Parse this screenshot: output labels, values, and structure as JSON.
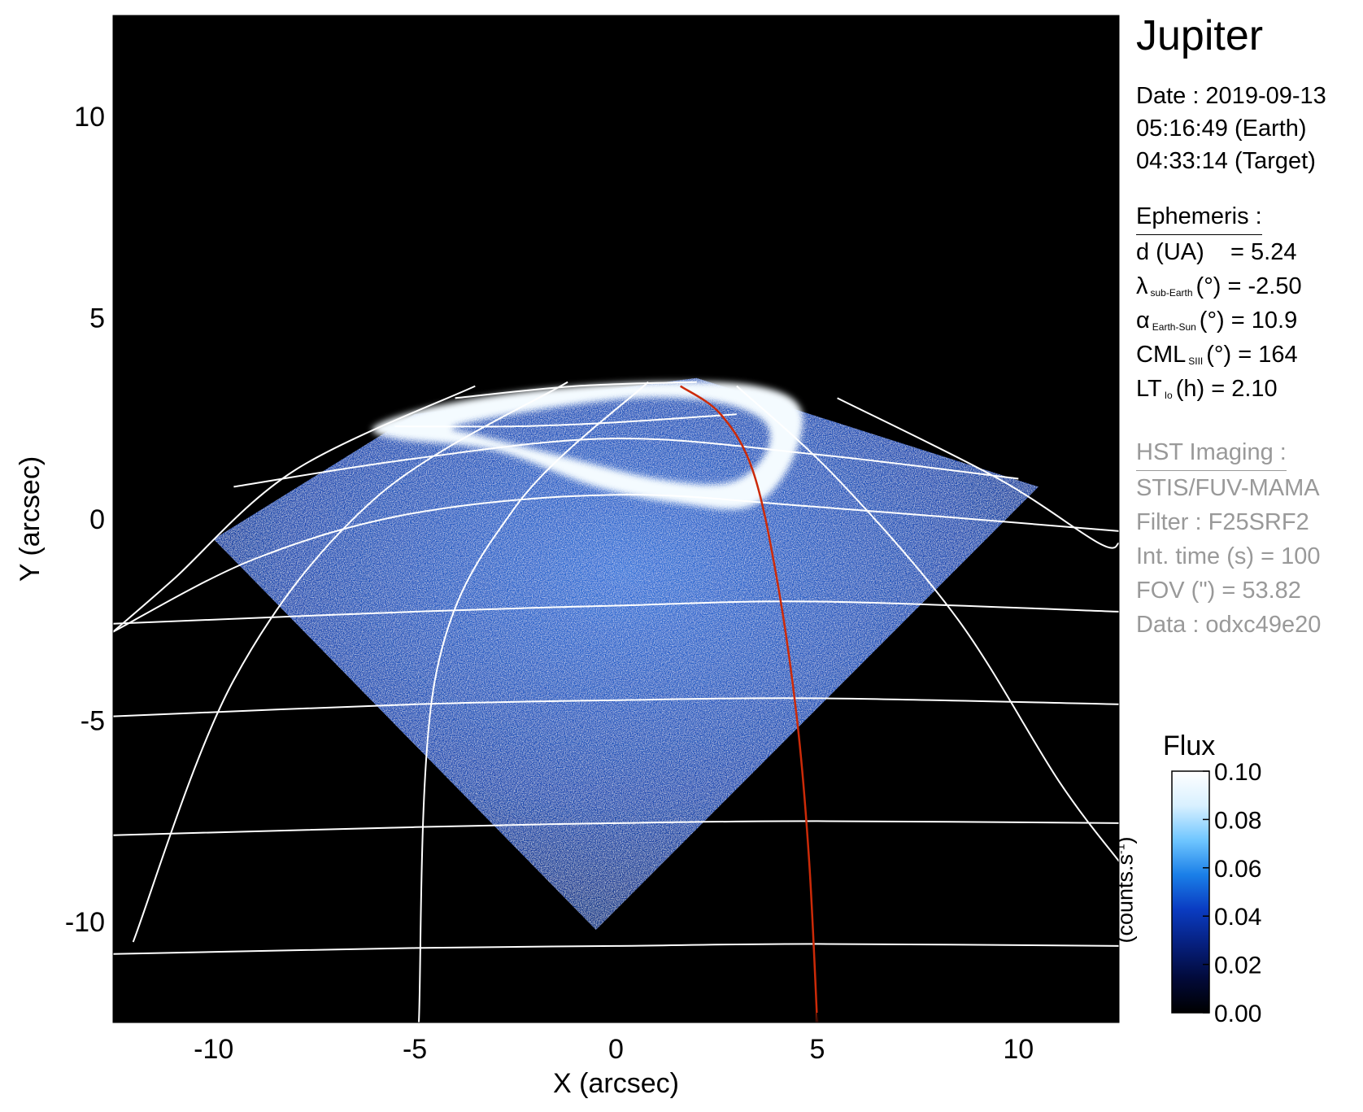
{
  "info": {
    "title": "Jupiter",
    "date_line": "Date : 2019-09-13",
    "earth_time": "05:16:49 (Earth)",
    "target_time": "04:33:14 (Target)",
    "ephemeris": {
      "header": "Ephemeris :",
      "d_label": "d (UA)",
      "d_value": "= 5.24",
      "lat_symbol": "λ",
      "lat_sub": "sub-Earth",
      "lat_rest": "(°) = -2.50",
      "phase_symbol": "α",
      "phase_sub": "Earth-Sun",
      "phase_rest": "(°) = 10.9",
      "cml_symbol": "CML",
      "cml_sub": "SIII",
      "cml_rest": "(°) = 164",
      "lt_symbol": "LT",
      "lt_sub": "Io",
      "lt_rest": "(h) = 2.10"
    },
    "hst": {
      "header": "HST Imaging :",
      "instrument": "STIS/FUV-MAMA",
      "filter": "Filter : F25SRF2",
      "int_time": "Int. time (s) = 100",
      "fov": "FOV (\") = 53.82",
      "data": "Data : odxc49e20"
    }
  },
  "colorbar": {
    "title": "Flux",
    "unit_main": "(counts.s",
    "unit_sup": "-1",
    "unit_close": ")",
    "range": [
      0.0,
      0.1
    ],
    "ticks": [
      "0.00",
      "0.02",
      "0.04",
      "0.06",
      "0.08",
      "0.10"
    ],
    "colors": [
      "#000000",
      "#020a3a",
      "#06207f",
      "#0a3cc2",
      "#1a7fe8",
      "#6fc6ff",
      "#d8f0ff",
      "#ffffff"
    ]
  },
  "chart_data": {
    "type": "heatmap",
    "title": "Jupiter",
    "xlabel": "X (arcsec)",
    "ylabel": "Y (arcsec)",
    "xlim": [
      -12.5,
      12.5
    ],
    "ylim": [
      -12.5,
      12.5
    ],
    "xticks": [
      -10,
      -5,
      0,
      5,
      10
    ],
    "yticks": [
      -10,
      -5,
      0,
      5,
      10
    ],
    "background_color": "#000000",
    "grid_color": "#ffffff",
    "reference_meridian_color": "#cc2a08",
    "image_footprint": [
      [
        -10,
        -0.5
      ],
      [
        -0.5,
        -10.2
      ],
      [
        10.5,
        0.8
      ],
      [
        2.0,
        3.5
      ],
      [
        -5.0,
        2.6
      ]
    ],
    "latitude_lines": [
      [
        [
          -12.5,
          -2.8
        ],
        [
          -9,
          -1.0
        ],
        [
          -5,
          0.15
        ],
        [
          0,
          0.6
        ],
        [
          5,
          0.3
        ],
        [
          12.5,
          -0.3
        ]
      ],
      [
        [
          -12.5,
          -2.6
        ],
        [
          -5,
          -2.3
        ],
        [
          0,
          -2.15
        ],
        [
          5,
          -2.05
        ],
        [
          12.5,
          -2.3
        ]
      ],
      [
        [
          -12.5,
          -4.9
        ],
        [
          -5,
          -4.6
        ],
        [
          0,
          -4.5
        ],
        [
          5,
          -4.45
        ],
        [
          12.5,
          -4.6
        ]
      ],
      [
        [
          -12.5,
          -7.85
        ],
        [
          -5,
          -7.65
        ],
        [
          0,
          -7.55
        ],
        [
          5,
          -7.5
        ],
        [
          12.5,
          -7.55
        ]
      ],
      [
        [
          -12.5,
          -10.8
        ],
        [
          -5,
          -10.65
        ],
        [
          0,
          -10.6
        ],
        [
          5,
          -10.55
        ],
        [
          12.5,
          -10.6
        ]
      ],
      [
        [
          -9.5,
          0.8
        ],
        [
          -5,
          1.5
        ],
        [
          0,
          2.0
        ],
        [
          5,
          1.6
        ],
        [
          10,
          1.0
        ]
      ],
      [
        [
          -5.5,
          2.3
        ],
        [
          -2.5,
          2.3
        ],
        [
          0,
          2.4
        ],
        [
          3,
          2.6
        ]
      ],
      [
        [
          -4,
          3.0
        ],
        [
          -1,
          3.3
        ],
        [
          2,
          3.4
        ]
      ]
    ],
    "longitude_lines": [
      [
        [
          -3.5,
          3.3
        ],
        [
          -8,
          1.2
        ],
        [
          -11,
          -1.5
        ],
        [
          -12.5,
          -2.8
        ]
      ],
      [
        [
          -1.2,
          3.4
        ],
        [
          -6,
          0.5
        ],
        [
          -9.5,
          -4
        ],
        [
          -12.0,
          -10.5
        ]
      ],
      [
        [
          0.8,
          3.4
        ],
        [
          -2.5,
          0.3
        ],
        [
          -4.5,
          -4
        ],
        [
          -4.9,
          -12.5
        ]
      ],
      [
        [
          3.0,
          3.3
        ],
        [
          5.5,
          1.0
        ],
        [
          8.5,
          -2.5
        ],
        [
          11.0,
          -6.5
        ],
        [
          12.5,
          -8.5
        ]
      ],
      [
        [
          5.5,
          3.0
        ],
        [
          9.5,
          1.0
        ],
        [
          12.0,
          -0.6
        ],
        [
          12.5,
          -0.6
        ]
      ]
    ],
    "reference_meridian": [
      [
        1.6,
        3.3
      ],
      [
        2.6,
        2.6
      ],
      [
        3.4,
        1.2
      ],
      [
        4.0,
        -1.5
      ],
      [
        4.5,
        -5
      ],
      [
        4.8,
        -8.5
      ],
      [
        5.0,
        -12.5
      ]
    ],
    "auroral_oval": {
      "outer": [
        [
          -6.0,
          2.3
        ],
        [
          -4.5,
          2.8
        ],
        [
          -2.0,
          3.2
        ],
        [
          1.0,
          3.4
        ],
        [
          3.5,
          3.3
        ],
        [
          4.6,
          2.7
        ],
        [
          4.3,
          1.3
        ],
        [
          3.3,
          0.3
        ],
        [
          1.5,
          0.4
        ],
        [
          -0.5,
          0.8
        ],
        [
          -3.0,
          1.7
        ],
        [
          -5.5,
          2.0
        ]
      ],
      "inner": [
        [
          -4.0,
          2.3
        ],
        [
          -2.0,
          2.7
        ],
        [
          0.5,
          3.0
        ],
        [
          2.5,
          2.9
        ],
        [
          3.7,
          2.4
        ],
        [
          3.7,
          1.6
        ],
        [
          2.8,
          0.9
        ],
        [
          1.0,
          1.0
        ],
        [
          -1.5,
          1.6
        ],
        [
          -3.5,
          2.1
        ]
      ]
    }
  }
}
